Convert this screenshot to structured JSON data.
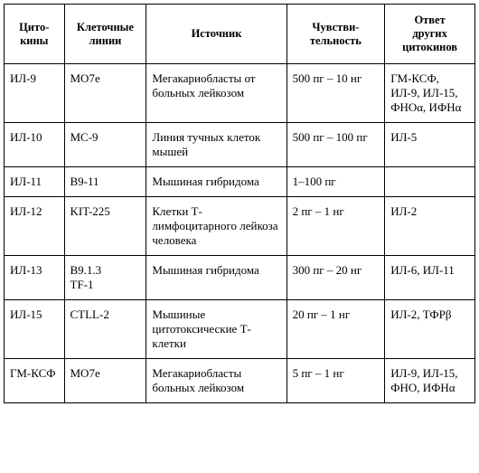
{
  "headers": {
    "cytokines": "Цито-\nкины",
    "cell_lines": "Клеточные\nлинии",
    "source": "Источник",
    "sensitivity": "Чувстви-\nтельность",
    "response": "Ответ\nдругих\nцитокинов"
  },
  "rows": [
    {
      "cytokine": "ИЛ-9",
      "cell_line": "MO7e",
      "source": "Мегакариобласты от больных лейкозом",
      "sensitivity": "500 пг – 10 нг",
      "response": "ГМ-КСФ, ИЛ-9, ИЛ-15, ФНОα, ИФНα"
    },
    {
      "cytokine": "ИЛ-10",
      "cell_line": "MC-9",
      "source": "Линия тучных клеток мышей",
      "sensitivity": "500 пг – 100 пг",
      "response": "ИЛ-5"
    },
    {
      "cytokine": "ИЛ-11",
      "cell_line": "B9-11",
      "source": "Мышиная гибридома",
      "sensitivity": "1–100 пг",
      "response": ""
    },
    {
      "cytokine": "ИЛ-12",
      "cell_line": "KIT-225",
      "source": "Клетки Т-лимфоцитарного лейкоза человека",
      "sensitivity": "2 пг – 1 нг",
      "response": "ИЛ-2"
    },
    {
      "cytokine": "ИЛ-13",
      "cell_line": "B9.1.3\nTF-1",
      "source": "Мышиная гибридома",
      "sensitivity": "300 пг – 20 нг",
      "response": "ИЛ-6, ИЛ-11"
    },
    {
      "cytokine": "ИЛ-15",
      "cell_line": "CTLL-2",
      "source": "Мышиные цитотоксические Т-клетки",
      "sensitivity": "20 пг – 1 нг",
      "response": "ИЛ-2, ТФРβ"
    },
    {
      "cytokine": "ГМ-КСФ",
      "cell_line": "MO7e",
      "source": "Мегакариобласты больных лейкозом",
      "sensitivity": "5 пг – 1 нг",
      "response": "ИЛ-9, ИЛ-15, ФНО, ИФНα"
    }
  ]
}
